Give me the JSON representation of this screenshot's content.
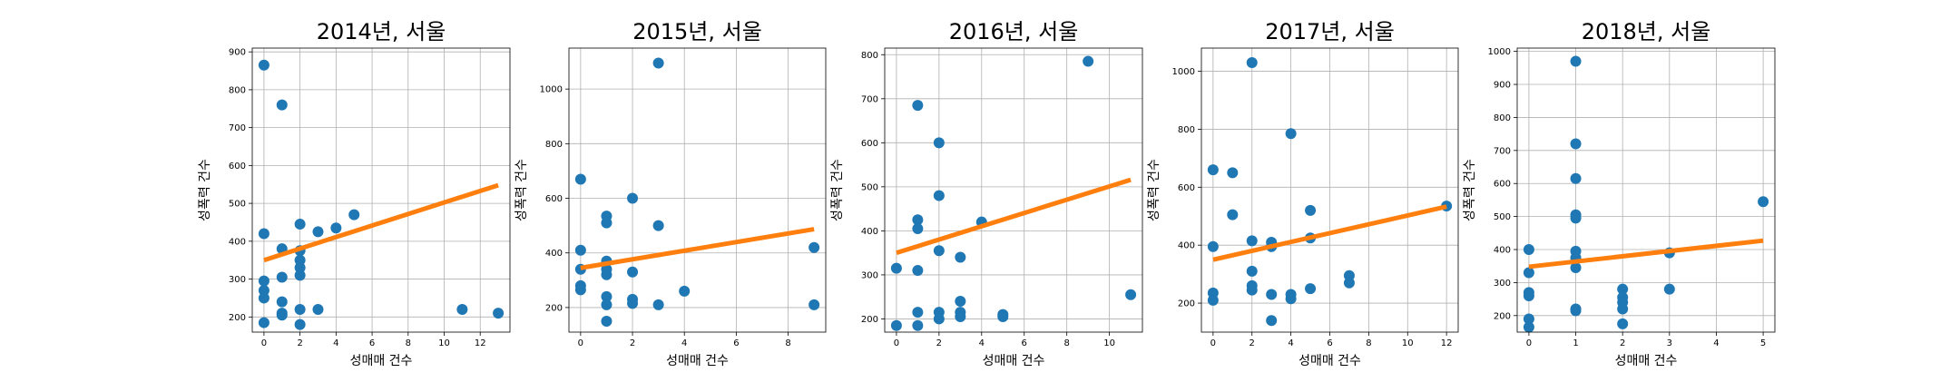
{
  "figure": {
    "background": "#ffffff"
  },
  "style": {
    "point_color": "#1f77b4",
    "fit_color": "#ff7f0e",
    "grid": true
  },
  "chart_data": [
    {
      "type": "scatter",
      "title": "2014년, 서울",
      "xlabel": "성매매 건수",
      "ylabel": "성폭력 건수",
      "xlim": [
        -0.65,
        13.65
      ],
      "ylim": [
        160,
        910
      ],
      "xticks": [
        0,
        2,
        4,
        6,
        8,
        10,
        12
      ],
      "yticks": [
        200,
        300,
        400,
        500,
        600,
        700,
        800,
        900
      ],
      "points": [
        [
          0,
          865
        ],
        [
          0,
          420
        ],
        [
          0,
          295
        ],
        [
          0,
          270
        ],
        [
          0,
          250
        ],
        [
          0,
          185
        ],
        [
          1,
          760
        ],
        [
          1,
          380
        ],
        [
          1,
          305
        ],
        [
          1,
          240
        ],
        [
          1,
          210
        ],
        [
          1,
          205
        ],
        [
          2,
          445
        ],
        [
          2,
          375
        ],
        [
          2,
          350
        ],
        [
          2,
          330
        ],
        [
          2,
          310
        ],
        [
          2,
          220
        ],
        [
          2,
          180
        ],
        [
          3,
          425
        ],
        [
          3,
          220
        ],
        [
          4,
          435
        ],
        [
          5,
          470
        ],
        [
          11,
          220
        ],
        [
          13,
          210
        ]
      ],
      "fit": {
        "x": [
          0,
          13
        ],
        "y": [
          350,
          548
        ]
      }
    },
    {
      "type": "scatter",
      "title": "2015년, 서울",
      "xlabel": "성매매 건수",
      "ylabel": "성폭력 건수",
      "xlim": [
        -0.45,
        9.45
      ],
      "ylim": [
        110,
        1150
      ],
      "xticks": [
        0,
        2,
        4,
        6,
        8
      ],
      "yticks": [
        200,
        400,
        600,
        800,
        1000
      ],
      "points": [
        [
          0,
          670
        ],
        [
          0,
          410
        ],
        [
          0,
          340
        ],
        [
          0,
          280
        ],
        [
          0,
          265
        ],
        [
          1,
          535
        ],
        [
          1,
          510
        ],
        [
          1,
          370
        ],
        [
          1,
          340
        ],
        [
          1,
          320
        ],
        [
          1,
          240
        ],
        [
          1,
          210
        ],
        [
          1,
          150
        ],
        [
          2,
          600
        ],
        [
          2,
          330
        ],
        [
          2,
          230
        ],
        [
          2,
          215
        ],
        [
          3,
          1095
        ],
        [
          3,
          500
        ],
        [
          3,
          210
        ],
        [
          4,
          260
        ],
        [
          9,
          420
        ],
        [
          9,
          210
        ]
      ],
      "fit": {
        "x": [
          0,
          9
        ],
        "y": [
          345,
          487
        ]
      }
    },
    {
      "type": "scatter",
      "title": "2016년, 서울",
      "xlabel": "성매매 건수",
      "ylabel": "성폭력 건수",
      "xlim": [
        -0.55,
        11.55
      ],
      "ylim": [
        170,
        815
      ],
      "xticks": [
        0,
        2,
        4,
        6,
        8,
        10
      ],
      "yticks": [
        200,
        300,
        400,
        500,
        600,
        700,
        800
      ],
      "points": [
        [
          0,
          315
        ],
        [
          0,
          185
        ],
        [
          1,
          685
        ],
        [
          1,
          425
        ],
        [
          1,
          405
        ],
        [
          1,
          310
        ],
        [
          1,
          215
        ],
        [
          1,
          185
        ],
        [
          2,
          600
        ],
        [
          2,
          480
        ],
        [
          2,
          355
        ],
        [
          2,
          215
        ],
        [
          2,
          200
        ],
        [
          3,
          340
        ],
        [
          3,
          240
        ],
        [
          3,
          215
        ],
        [
          3,
          205
        ],
        [
          4,
          420
        ],
        [
          5,
          210
        ],
        [
          5,
          205
        ],
        [
          9,
          785
        ],
        [
          11,
          255
        ]
      ],
      "fit": {
        "x": [
          0,
          11
        ],
        "y": [
          350,
          516
        ]
      }
    },
    {
      "type": "scatter",
      "title": "2017년, 서울",
      "xlabel": "성매매 건수",
      "ylabel": "성폭력 건수",
      "xlim": [
        -0.6,
        12.6
      ],
      "ylim": [
        100,
        1080
      ],
      "xticks": [
        0,
        2,
        4,
        6,
        8,
        10,
        12
      ],
      "yticks": [
        200,
        400,
        600,
        800,
        1000
      ],
      "points": [
        [
          0,
          660
        ],
        [
          0,
          395
        ],
        [
          0,
          235
        ],
        [
          0,
          210
        ],
        [
          1,
          650
        ],
        [
          1,
          505
        ],
        [
          2,
          1030
        ],
        [
          2,
          415
        ],
        [
          2,
          310
        ],
        [
          2,
          260
        ],
        [
          2,
          245
        ],
        [
          3,
          410
        ],
        [
          3,
          395
        ],
        [
          3,
          230
        ],
        [
          3,
          140
        ],
        [
          4,
          785
        ],
        [
          4,
          230
        ],
        [
          4,
          215
        ],
        [
          5,
          520
        ],
        [
          5,
          425
        ],
        [
          5,
          250
        ],
        [
          7,
          295
        ],
        [
          7,
          270
        ],
        [
          12,
          535
        ]
      ],
      "fit": {
        "x": [
          0,
          12
        ],
        "y": [
          350,
          533
        ]
      }
    },
    {
      "type": "scatter",
      "title": "2018년, 서울",
      "xlabel": "성매매 건수",
      "ylabel": "성폭력 건수",
      "xlim": [
        -0.25,
        5.25
      ],
      "ylim": [
        150,
        1010
      ],
      "xticks": [
        0,
        1,
        2,
        3,
        4,
        5
      ],
      "yticks": [
        200,
        300,
        400,
        500,
        600,
        700,
        800,
        900,
        1000
      ],
      "points": [
        [
          0,
          400
        ],
        [
          0,
          330
        ],
        [
          0,
          270
        ],
        [
          0,
          260
        ],
        [
          0,
          190
        ],
        [
          0,
          165
        ],
        [
          1,
          970
        ],
        [
          1,
          720
        ],
        [
          1,
          615
        ],
        [
          1,
          505
        ],
        [
          1,
          495
        ],
        [
          1,
          395
        ],
        [
          1,
          375
        ],
        [
          1,
          345
        ],
        [
          1,
          220
        ],
        [
          1,
          215
        ],
        [
          2,
          280
        ],
        [
          2,
          255
        ],
        [
          2,
          240
        ],
        [
          2,
          220
        ],
        [
          2,
          175
        ],
        [
          3,
          390
        ],
        [
          3,
          280
        ],
        [
          5,
          545
        ]
      ],
      "fit": {
        "x": [
          0,
          5
        ],
        "y": [
          348,
          427
        ]
      }
    }
  ]
}
